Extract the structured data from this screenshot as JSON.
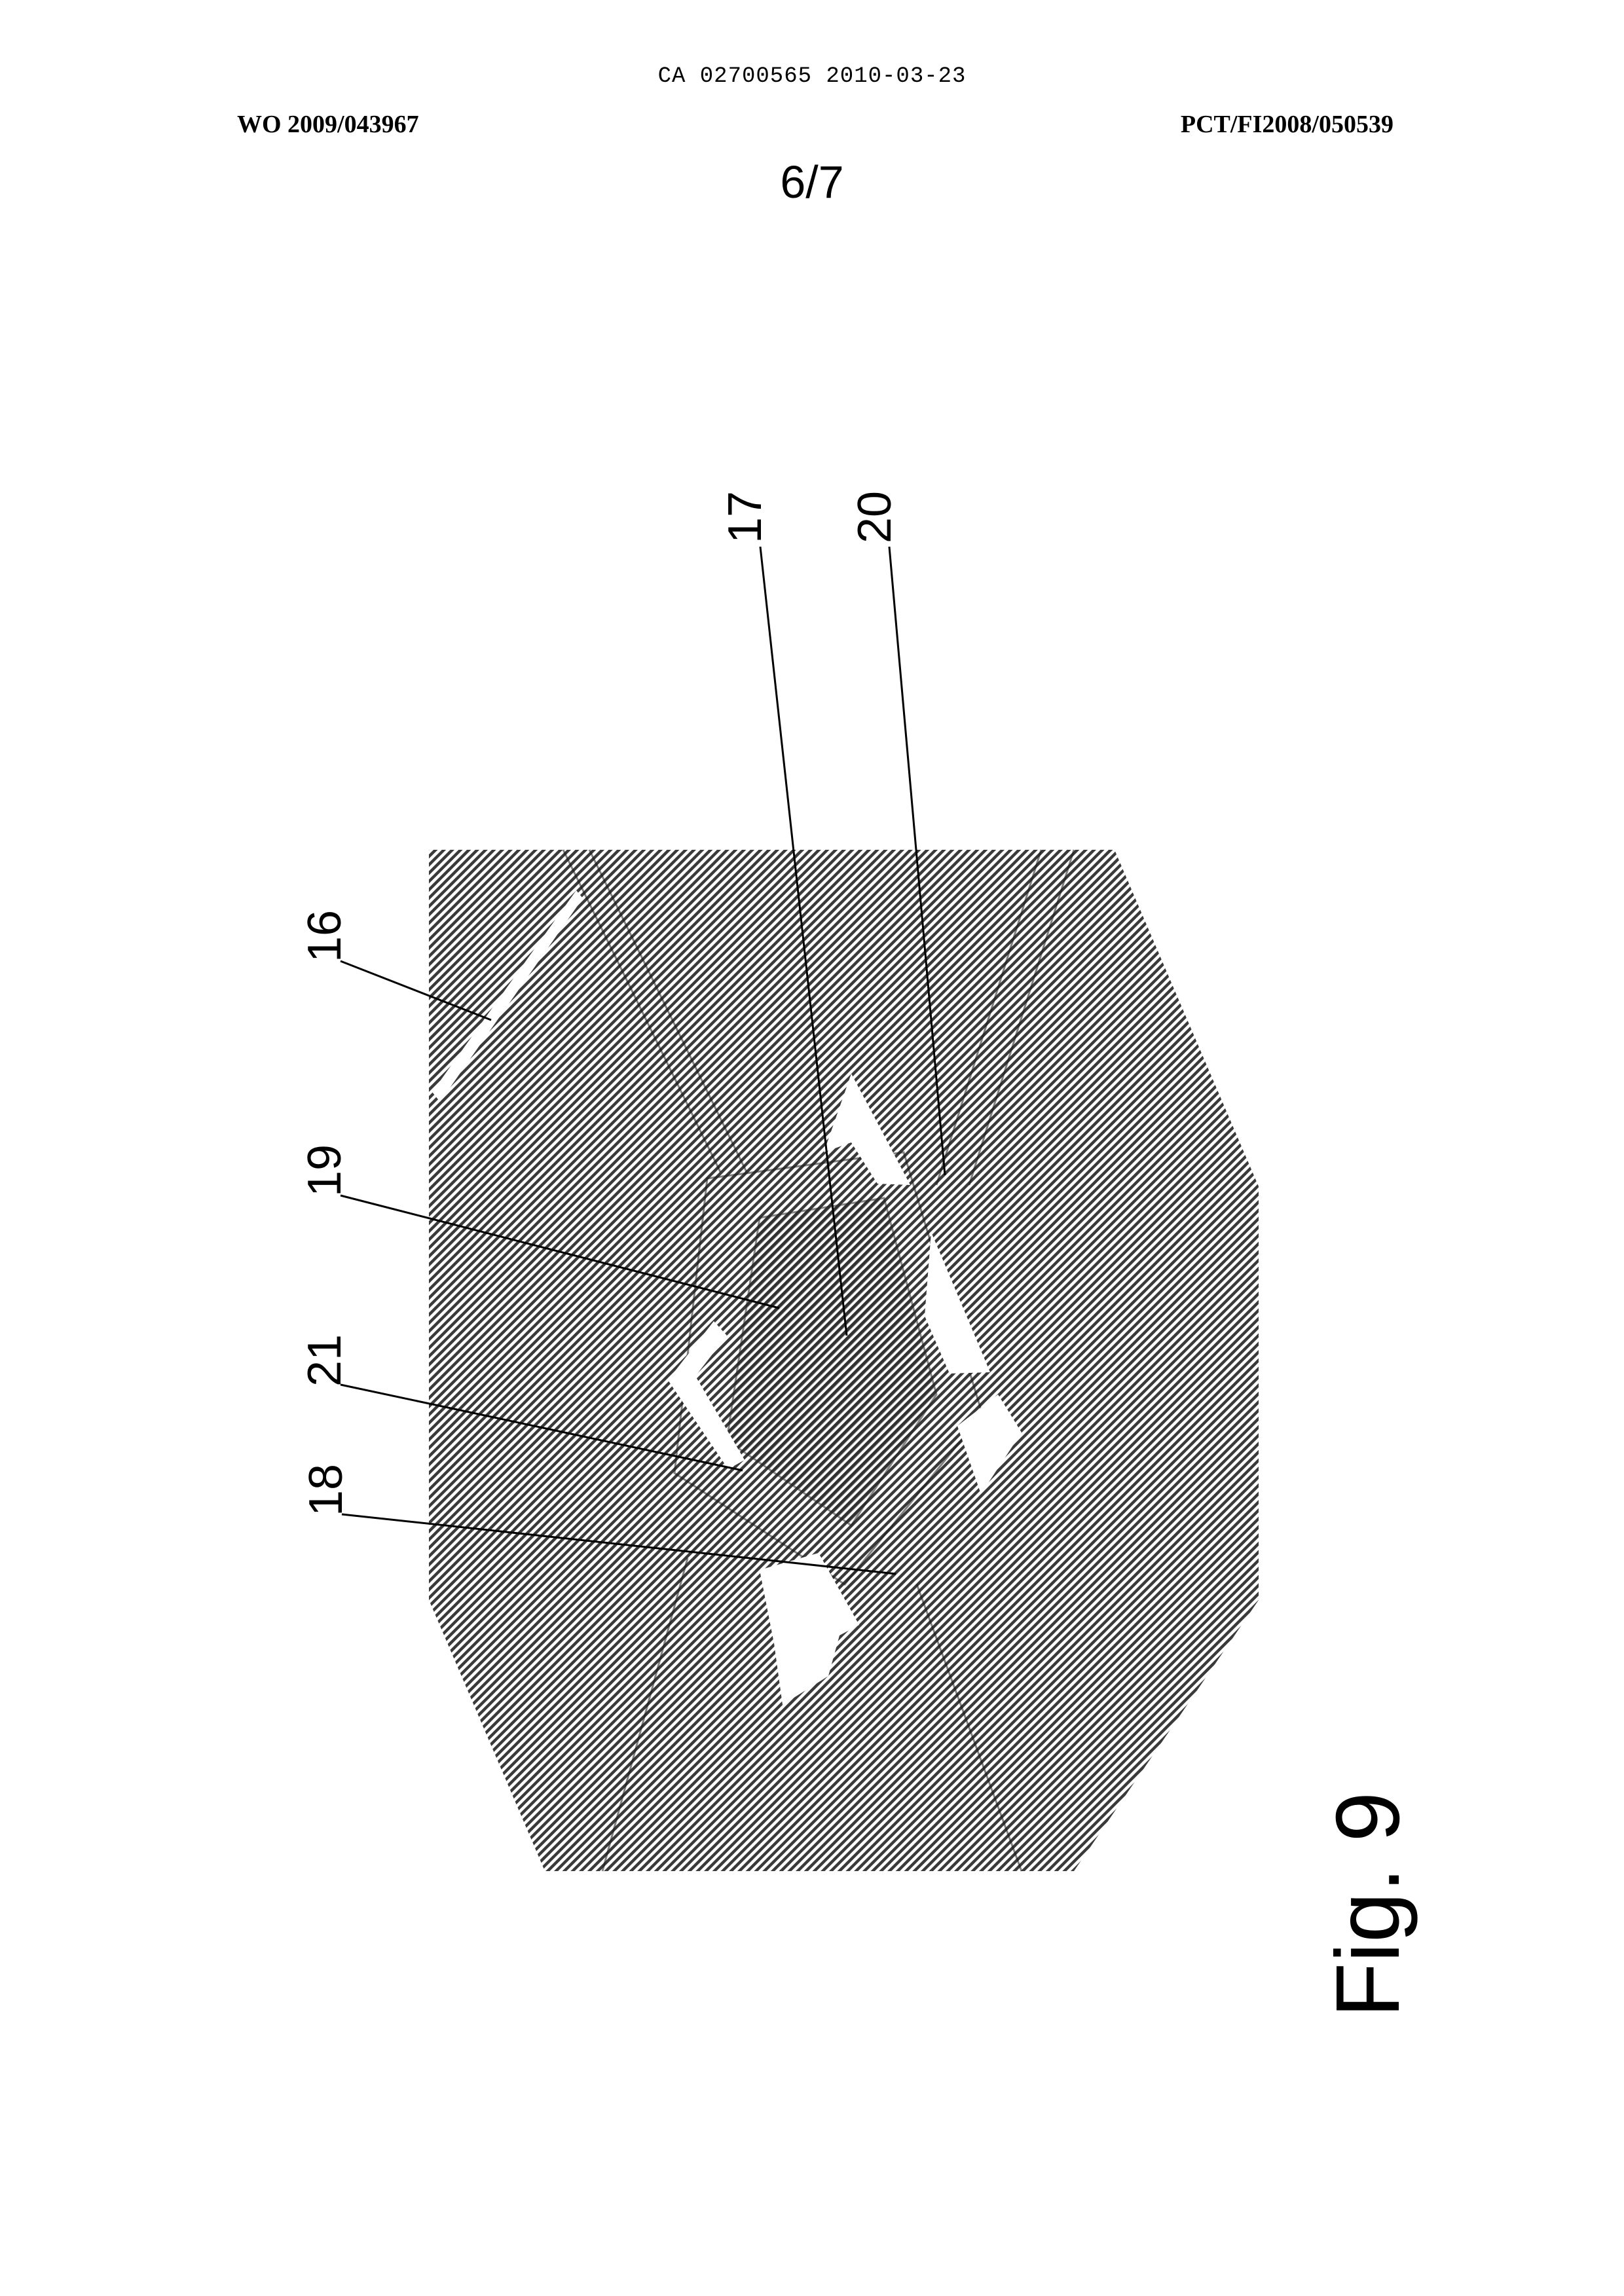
{
  "header": {
    "publication_line": "CA 02700565 2010-03-23",
    "left_ref": "WO 2009/043967",
    "right_ref": "PCT/FI2008/050539",
    "sheet": "6/7"
  },
  "figure": {
    "label": "Fig. 9",
    "reference_numerals": [
      "17",
      "20",
      "16",
      "19",
      "21",
      "18"
    ]
  }
}
